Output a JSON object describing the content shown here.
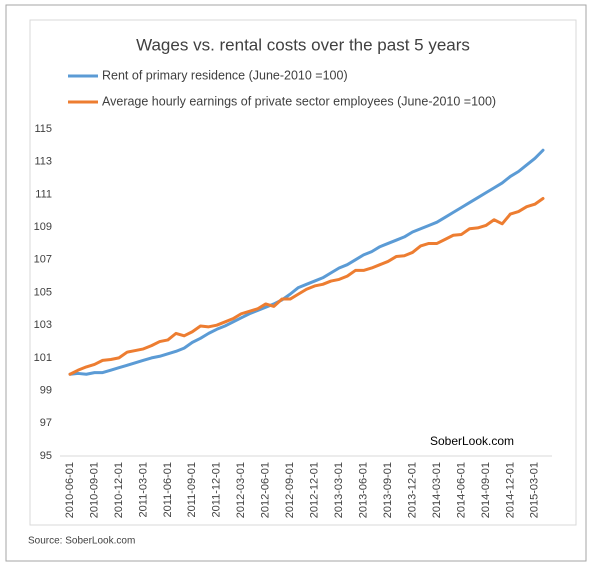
{
  "chart_data": {
    "type": "line",
    "title": "Wages vs. rental costs over the past 5 years",
    "annotation": "SoberLook.com",
    "source": "Source: SoberLook.com",
    "categories": [
      "2010-06-01",
      null,
      null,
      "2010-09-01",
      null,
      null,
      "2010-12-01",
      null,
      null,
      "2011-03-01",
      null,
      null,
      "2011-06-01",
      null,
      null,
      "2011-09-01",
      null,
      null,
      "2011-12-01",
      null,
      null,
      "2012-03-01",
      null,
      null,
      "2012-06-01",
      null,
      null,
      "2012-09-01",
      null,
      null,
      "2012-12-01",
      null,
      null,
      "2013-03-01",
      null,
      null,
      "2013-06-01",
      null,
      null,
      "2013-09-01",
      null,
      null,
      "2013-12-01",
      null,
      null,
      "2014-03-01",
      null,
      null,
      "2014-06-01",
      null,
      null,
      "2014-09-01",
      null,
      null,
      "2014-12-01",
      null,
      null,
      "2015-03-01",
      null
    ],
    "series": [
      {
        "name": "Rent of primary residence (June-2010 =100)",
        "color": "#5b9bd5",
        "values": [
          100.0,
          100.05,
          100.0,
          100.1,
          100.1,
          100.25,
          100.4,
          100.55,
          100.7,
          100.85,
          101.0,
          101.1,
          101.25,
          101.4,
          101.6,
          101.95,
          102.2,
          102.5,
          102.75,
          102.95,
          103.2,
          103.45,
          103.7,
          103.9,
          104.1,
          104.3,
          104.55,
          104.9,
          105.3,
          105.5,
          105.7,
          105.9,
          106.2,
          106.5,
          106.7,
          107.0,
          107.3,
          107.5,
          107.8,
          108.0,
          108.2,
          108.4,
          108.7,
          108.9,
          109.1,
          109.3,
          109.6,
          109.9,
          110.2,
          110.5,
          110.8,
          111.1,
          111.4,
          111.7,
          112.1,
          112.4,
          112.8,
          113.2,
          113.7
        ]
      },
      {
        "name": "Average hourly earnings of private sector employees (June-2010 =100)",
        "color": "#ed7d31",
        "values": [
          100.0,
          100.25,
          100.45,
          100.6,
          100.85,
          100.9,
          101.0,
          101.35,
          101.45,
          101.55,
          101.75,
          102.0,
          102.1,
          102.5,
          102.35,
          102.6,
          102.95,
          102.9,
          103.0,
          103.2,
          103.4,
          103.7,
          103.85,
          104.0,
          104.3,
          104.15,
          104.6,
          104.6,
          104.9,
          105.2,
          105.4,
          105.5,
          105.7,
          105.8,
          106.0,
          106.35,
          106.35,
          106.5,
          106.7,
          106.9,
          107.2,
          107.25,
          107.45,
          107.85,
          108.0,
          108.0,
          108.25,
          108.5,
          108.55,
          108.9,
          108.95,
          109.1,
          109.45,
          109.2,
          109.8,
          109.95,
          110.25,
          110.4,
          110.75
        ]
      }
    ],
    "ylim": [
      95,
      115
    ],
    "yticks": [
      95,
      97,
      99,
      101,
      103,
      105,
      107,
      109,
      111,
      113,
      115
    ],
    "grid": false
  }
}
